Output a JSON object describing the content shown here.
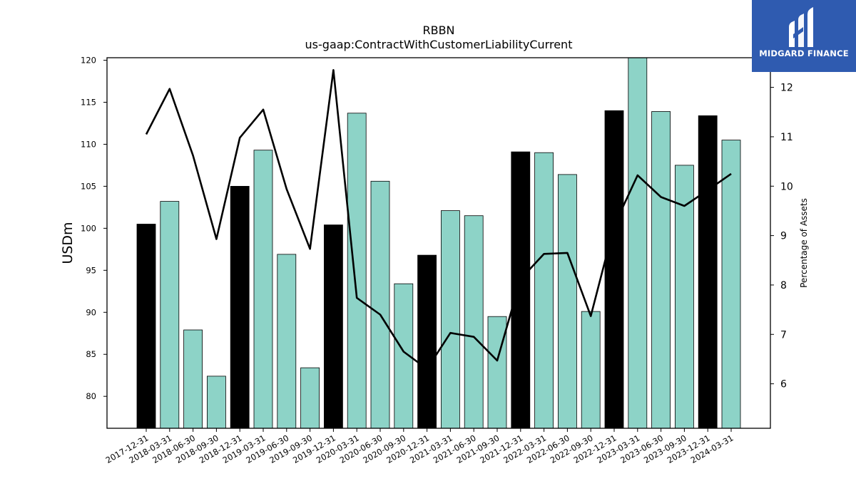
{
  "chart_data": {
    "type": "bar",
    "title": "RBBN",
    "subtitle": "us-gaap:ContractWithCustomerLiabilityCurrent",
    "ylabel": "USDm",
    "y2label": "Percentage of Assets",
    "ylim": [
      76.2,
      120.3
    ],
    "y2lim": [
      5.1,
      12.6
    ],
    "yticks": [
      80,
      85,
      90,
      95,
      100,
      105,
      110,
      115,
      120
    ],
    "y2ticks": [
      6,
      7,
      8,
      9,
      10,
      11,
      12
    ],
    "categories": [
      "2017-12-31",
      "2018-03-31",
      "2018-06-30",
      "2018-09-30",
      "2018-12-31",
      "2019-03-31",
      "2019-06-30",
      "2019-09-30",
      "2019-12-31",
      "2020-03-31",
      "2020-06-30",
      "2020-09-30",
      "2020-12-31",
      "2021-03-31",
      "2021-06-30",
      "2021-09-30",
      "2021-12-31",
      "2022-03-31",
      "2022-06-30",
      "2022-09-30",
      "2022-12-31",
      "2023-03-31",
      "2023-06-30",
      "2023-09-30",
      "2023-12-31",
      "2024-03-31"
    ],
    "series": [
      {
        "values": [
          100.5,
          103.2,
          87.9,
          82.4,
          105.0,
          109.3,
          96.9,
          83.4,
          100.4,
          113.7,
          105.6,
          93.4,
          96.8,
          102.1,
          101.5,
          89.5,
          109.1,
          109.0,
          106.4,
          90.1,
          114.0,
          120.3,
          113.9,
          107.5,
          113.4,
          110.5
        ],
        "colors": [
          "#000000",
          "#8dd3c7",
          "#8dd3c7",
          "#8dd3c7",
          "#000000",
          "#8dd3c7",
          "#8dd3c7",
          "#8dd3c7",
          "#000000",
          "#8dd3c7",
          "#8dd3c7",
          "#8dd3c7",
          "#000000",
          "#8dd3c7",
          "#8dd3c7",
          "#8dd3c7",
          "#000000",
          "#8dd3c7",
          "#8dd3c7",
          "#8dd3c7",
          "#000000",
          "#8dd3c7",
          "#8dd3c7",
          "#8dd3c7",
          "#000000",
          "#8dd3c7"
        ]
      },
      {
        "axis": "right",
        "type": "line",
        "color": "#000000",
        "values": [
          11.05,
          11.97,
          10.62,
          8.93,
          10.98,
          11.55,
          9.94,
          8.73,
          12.35,
          7.74,
          7.4,
          6.65,
          6.3,
          7.03,
          6.95,
          6.47,
          8.12,
          8.63,
          8.65,
          7.37,
          9.2,
          10.22,
          9.78,
          9.6,
          9.92,
          10.25
        ]
      }
    ],
    "grid": false,
    "legend": "none"
  },
  "logo": {
    "text": "MIDGARD FINANCE",
    "background": "#2f5bb0"
  }
}
